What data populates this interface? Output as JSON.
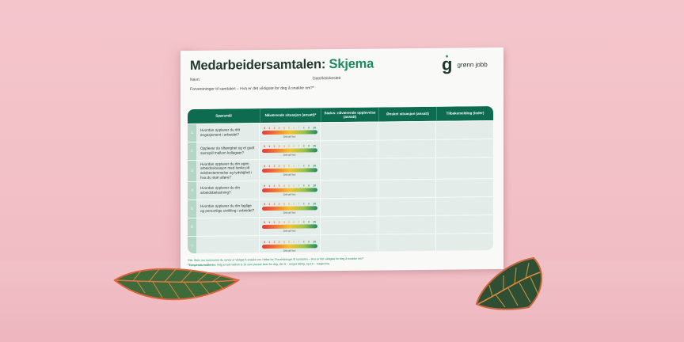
{
  "document": {
    "title_main": "Medarbeidersamtalen: ",
    "title_accent": "Skjema",
    "name_label": "Navn:",
    "date_label": "Dato/klokkeslett",
    "expectations_label": "Forventninger til samtalen – Hva er det viktigste for deg å snakke om?*",
    "logo_glyph": "g",
    "logo_text": "grønn jobb"
  },
  "table": {
    "headers": [
      "Spørsmål",
      "Nåværende situasjon (ansatt)*",
      "Status: nåværende opplevelse (ansatt)",
      "Ønsket situasjon (ansatt)",
      "Tilbakemelding (leder)"
    ],
    "scale_ticks": [
      "0",
      "1",
      "2",
      "3",
      "4",
      "5",
      "6",
      "7",
      "8",
      "9",
      "10"
    ],
    "scale_caption": "Ditt tall her:",
    "rows": [
      {
        "num": "1",
        "question": "Hvordan opplever du ditt engasjement i arbeidet?"
      },
      {
        "num": "2",
        "question": "Opplever du tilhørighet og et godt samspill mellom kollegaer?"
      },
      {
        "num": "3",
        "question": "Hvordan opplever du din egen arbeidssituasjon med tanke på selvbestemmelse og tydelighet i hva du skal utføre?"
      },
      {
        "num": "4",
        "question": "Hvordan opplever du din arbeidsbelastning?"
      },
      {
        "num": "5",
        "question": "Hvordan opplever du din faglige og personlige utvikling i arbeidet?"
      },
      {
        "num": "6",
        "question": ""
      },
      {
        "num": "7",
        "question": ""
      }
    ]
  },
  "footnotes": {
    "note1": "*Nb: Skriv inn nummerne du synes er viktigst å snakke om i feltet for 'Forventninger til samtalen – Hva er det viktigste for deg å snakke om?'",
    "note2_bold": "*Temperaturmåleren:",
    "note2": " Velg et tall mellom 0-10 som passer best for deg, der 0 – meget dårlig, og 10 – meget bra."
  },
  "colors": {
    "background": "#f4c6cc",
    "accent": "#1e8a5f",
    "header_green": "#0d6b4f",
    "tick_colors": [
      "#e8363d",
      "#ea4a3a",
      "#ee6433",
      "#f07a2e",
      "#f39a2b",
      "#f5b52a",
      "#e8c72c",
      "#b9c43e",
      "#7bb44c",
      "#3f9a55",
      "#1e8a5f"
    ]
  }
}
